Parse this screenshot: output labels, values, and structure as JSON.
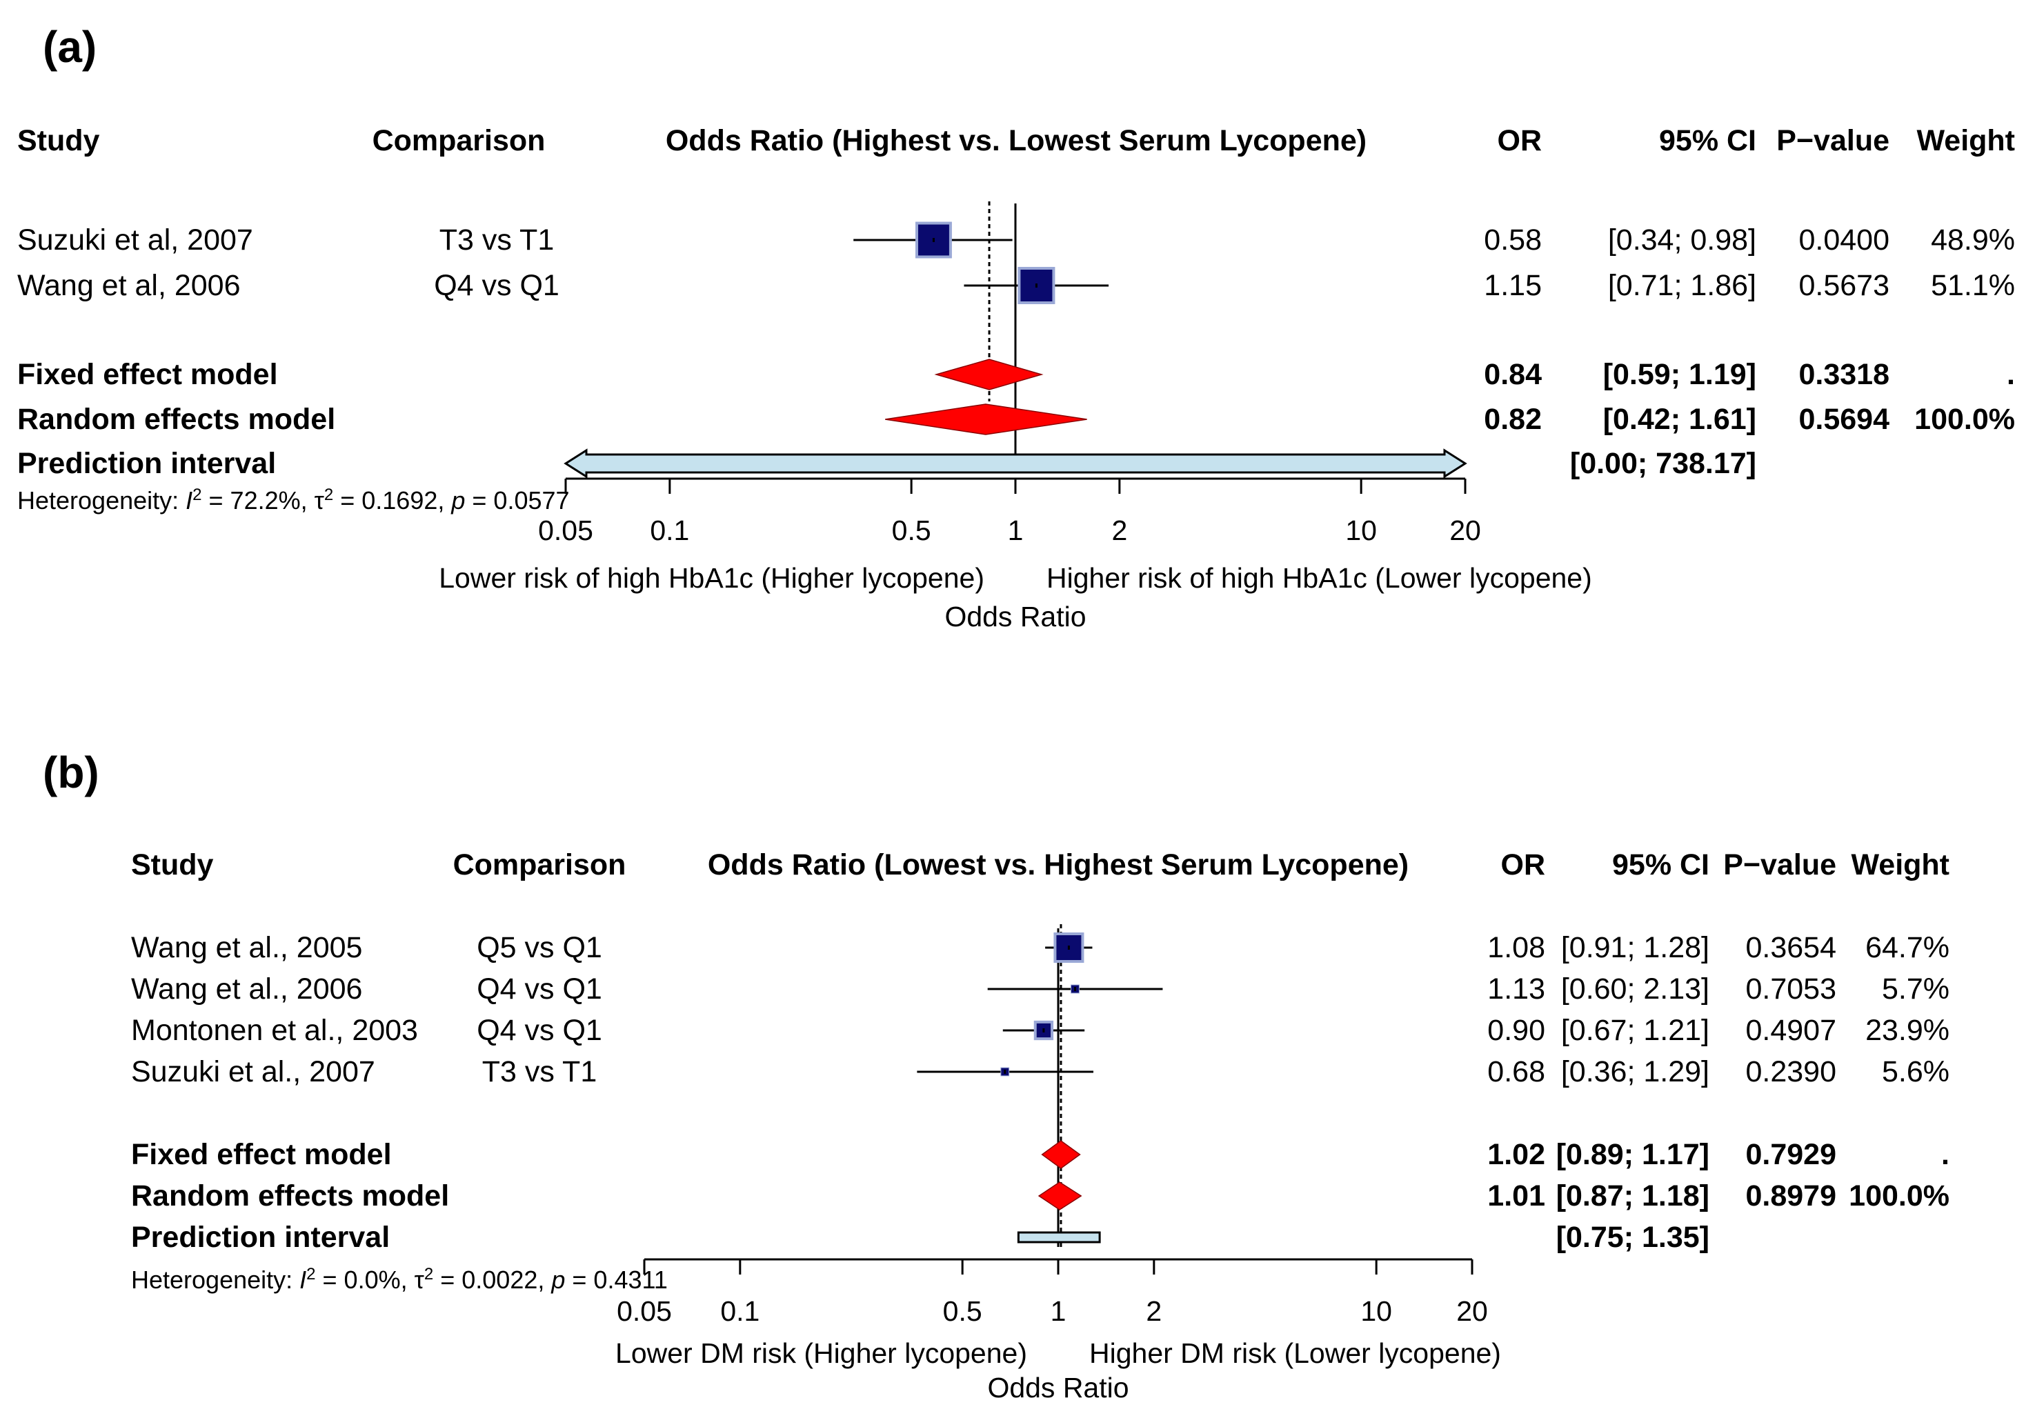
{
  "chart_data": [
    {
      "type": "forest",
      "panel_label": "(a)",
      "headers": {
        "study": "Study",
        "comparison": "Comparison",
        "plot": "Odds Ratio (Highest vs. Lowest Serum Lycopene)",
        "or": "OR",
        "ci": "95% CI",
        "p": "P−value",
        "weight": "Weight"
      },
      "studies": [
        {
          "study": "Suzuki et al, 2007",
          "comparison": "T3 vs T1",
          "or": 0.58,
          "lo": 0.34,
          "hi": 0.98,
          "or_text": "0.58",
          "ci_text": "[0.34;  0.98]",
          "p_text": "0.0400",
          "weight": 48.9,
          "weight_text": "48.9%"
        },
        {
          "study": "Wang et al, 2006",
          "comparison": "Q4 vs Q1",
          "or": 1.15,
          "lo": 0.71,
          "hi": 1.86,
          "or_text": "1.15",
          "ci_text": "[0.71;  1.86]",
          "p_text": "0.5673",
          "weight": 51.1,
          "weight_text": "51.1%"
        }
      ],
      "fixed": {
        "label": "Fixed effect model",
        "or": 0.84,
        "lo": 0.59,
        "hi": 1.19,
        "or_text": "0.84",
        "ci_text": "[0.59;  1.19]",
        "p_text": "0.3318",
        "weight_text": "."
      },
      "random": {
        "label": "Random effects model",
        "or": 0.82,
        "lo": 0.42,
        "hi": 1.61,
        "or_text": "0.82",
        "ci_text": "[0.42;  1.61]",
        "p_text": "0.5694",
        "weight_text": "100.0%"
      },
      "prediction": {
        "label": "Prediction interval",
        "lo": 0.0,
        "hi": 738.17,
        "ci_text": "[0.00; 738.17]",
        "arrows": true
      },
      "heterogeneity": {
        "prefix": "Heterogeneity: ",
        "i2": "I",
        "i2_rest": " = 72.2%, ",
        "tau": "τ",
        "tau_rest": " = 0.1692, ",
        "p": "p",
        "p_rest": " = 0.0577"
      },
      "x_ticks": [
        {
          "value": 0.05,
          "label": "0.05"
        },
        {
          "value": 0.1,
          "label": "0.1"
        },
        {
          "value": 0.5,
          "label": "0.5"
        },
        {
          "value": 1,
          "label": "1"
        },
        {
          "value": 2,
          "label": "2"
        },
        {
          "value": 10,
          "label": "10"
        },
        {
          "value": 20,
          "label": "20"
        }
      ],
      "x_scale": "log",
      "xlim": [
        0.05,
        20
      ],
      "left_label": "Lower risk of high HbA1c (Higher lycopene)",
      "right_label": "Higher risk of high HbA1c (Lower lycopene)",
      "xlabel": "Odds Ratio",
      "colors": {
        "square": "#0a0a6e",
        "square_border": "#9aa8d6",
        "diamond": "#ff0000",
        "prediction": "#c6e2ee"
      }
    },
    {
      "type": "forest",
      "panel_label": "(b)",
      "headers": {
        "study": "Study",
        "comparison": "Comparison",
        "plot": "Odds Ratio (Lowest vs. Highest Serum Lycopene)",
        "or": "OR",
        "ci": "95% CI",
        "p": "P−value",
        "weight": "Weight"
      },
      "studies": [
        {
          "study": "Wang et al., 2005",
          "comparison": "Q5 vs Q1",
          "or": 1.08,
          "lo": 0.91,
          "hi": 1.28,
          "or_text": "1.08",
          "ci_text": "[0.91; 1.28]",
          "p_text": "0.3654",
          "weight": 64.7,
          "weight_text": "64.7%"
        },
        {
          "study": "Wang et al., 2006",
          "comparison": "Q4 vs Q1",
          "or": 1.13,
          "lo": 0.6,
          "hi": 2.13,
          "or_text": "1.13",
          "ci_text": "[0.60; 2.13]",
          "p_text": "0.7053",
          "weight": 5.7,
          "weight_text": "5.7%"
        },
        {
          "study": "Montonen et al., 2003",
          "comparison": "Q4 vs Q1",
          "or": 0.9,
          "lo": 0.67,
          "hi": 1.21,
          "or_text": "0.90",
          "ci_text": "[0.67; 1.21]",
          "p_text": "0.4907",
          "weight": 23.9,
          "weight_text": "23.9%"
        },
        {
          "study": "Suzuki et al., 2007",
          "comparison": "T3 vs T1",
          "or": 0.68,
          "lo": 0.36,
          "hi": 1.29,
          "or_text": "0.68",
          "ci_text": "[0.36; 1.29]",
          "p_text": "0.2390",
          "weight": 5.6,
          "weight_text": "5.6%"
        }
      ],
      "fixed": {
        "label": "Fixed effect model",
        "or": 1.02,
        "lo": 0.89,
        "hi": 1.17,
        "or_text": "1.02",
        "ci_text": "[0.89; 1.17]",
        "p_text": "0.7929",
        "weight_text": "."
      },
      "random": {
        "label": "Random effects model",
        "or": 1.01,
        "lo": 0.87,
        "hi": 1.18,
        "or_text": "1.01",
        "ci_text": "[0.87; 1.18]",
        "p_text": "0.8979",
        "weight_text": "100.0%"
      },
      "prediction": {
        "label": "Prediction interval",
        "lo": 0.75,
        "hi": 1.35,
        "ci_text": "[0.75; 1.35]",
        "arrows": false
      },
      "heterogeneity": {
        "prefix": "Heterogeneity: ",
        "i2": "I",
        "i2_rest": " = 0.0%, ",
        "tau": "τ",
        "tau_rest": " = 0.0022, ",
        "p": "p",
        "p_rest": " = 0.4311"
      },
      "x_ticks": [
        {
          "value": 0.05,
          "label": "0.05"
        },
        {
          "value": 0.1,
          "label": "0.1"
        },
        {
          "value": 0.5,
          "label": "0.5"
        },
        {
          "value": 1,
          "label": "1"
        },
        {
          "value": 2,
          "label": "2"
        },
        {
          "value": 10,
          "label": "10"
        },
        {
          "value": 20,
          "label": "20"
        }
      ],
      "x_scale": "log",
      "xlim": [
        0.05,
        20
      ],
      "left_label": "Lower DM risk (Higher lycopene)",
      "right_label": "Higher DM risk (Lower lycopene)",
      "xlabel": "Odds Ratio",
      "colors": {
        "square": "#0a0a6e",
        "square_border": "#9aa8d6",
        "diamond": "#ff0000",
        "prediction": "#c6e2ee"
      }
    }
  ]
}
